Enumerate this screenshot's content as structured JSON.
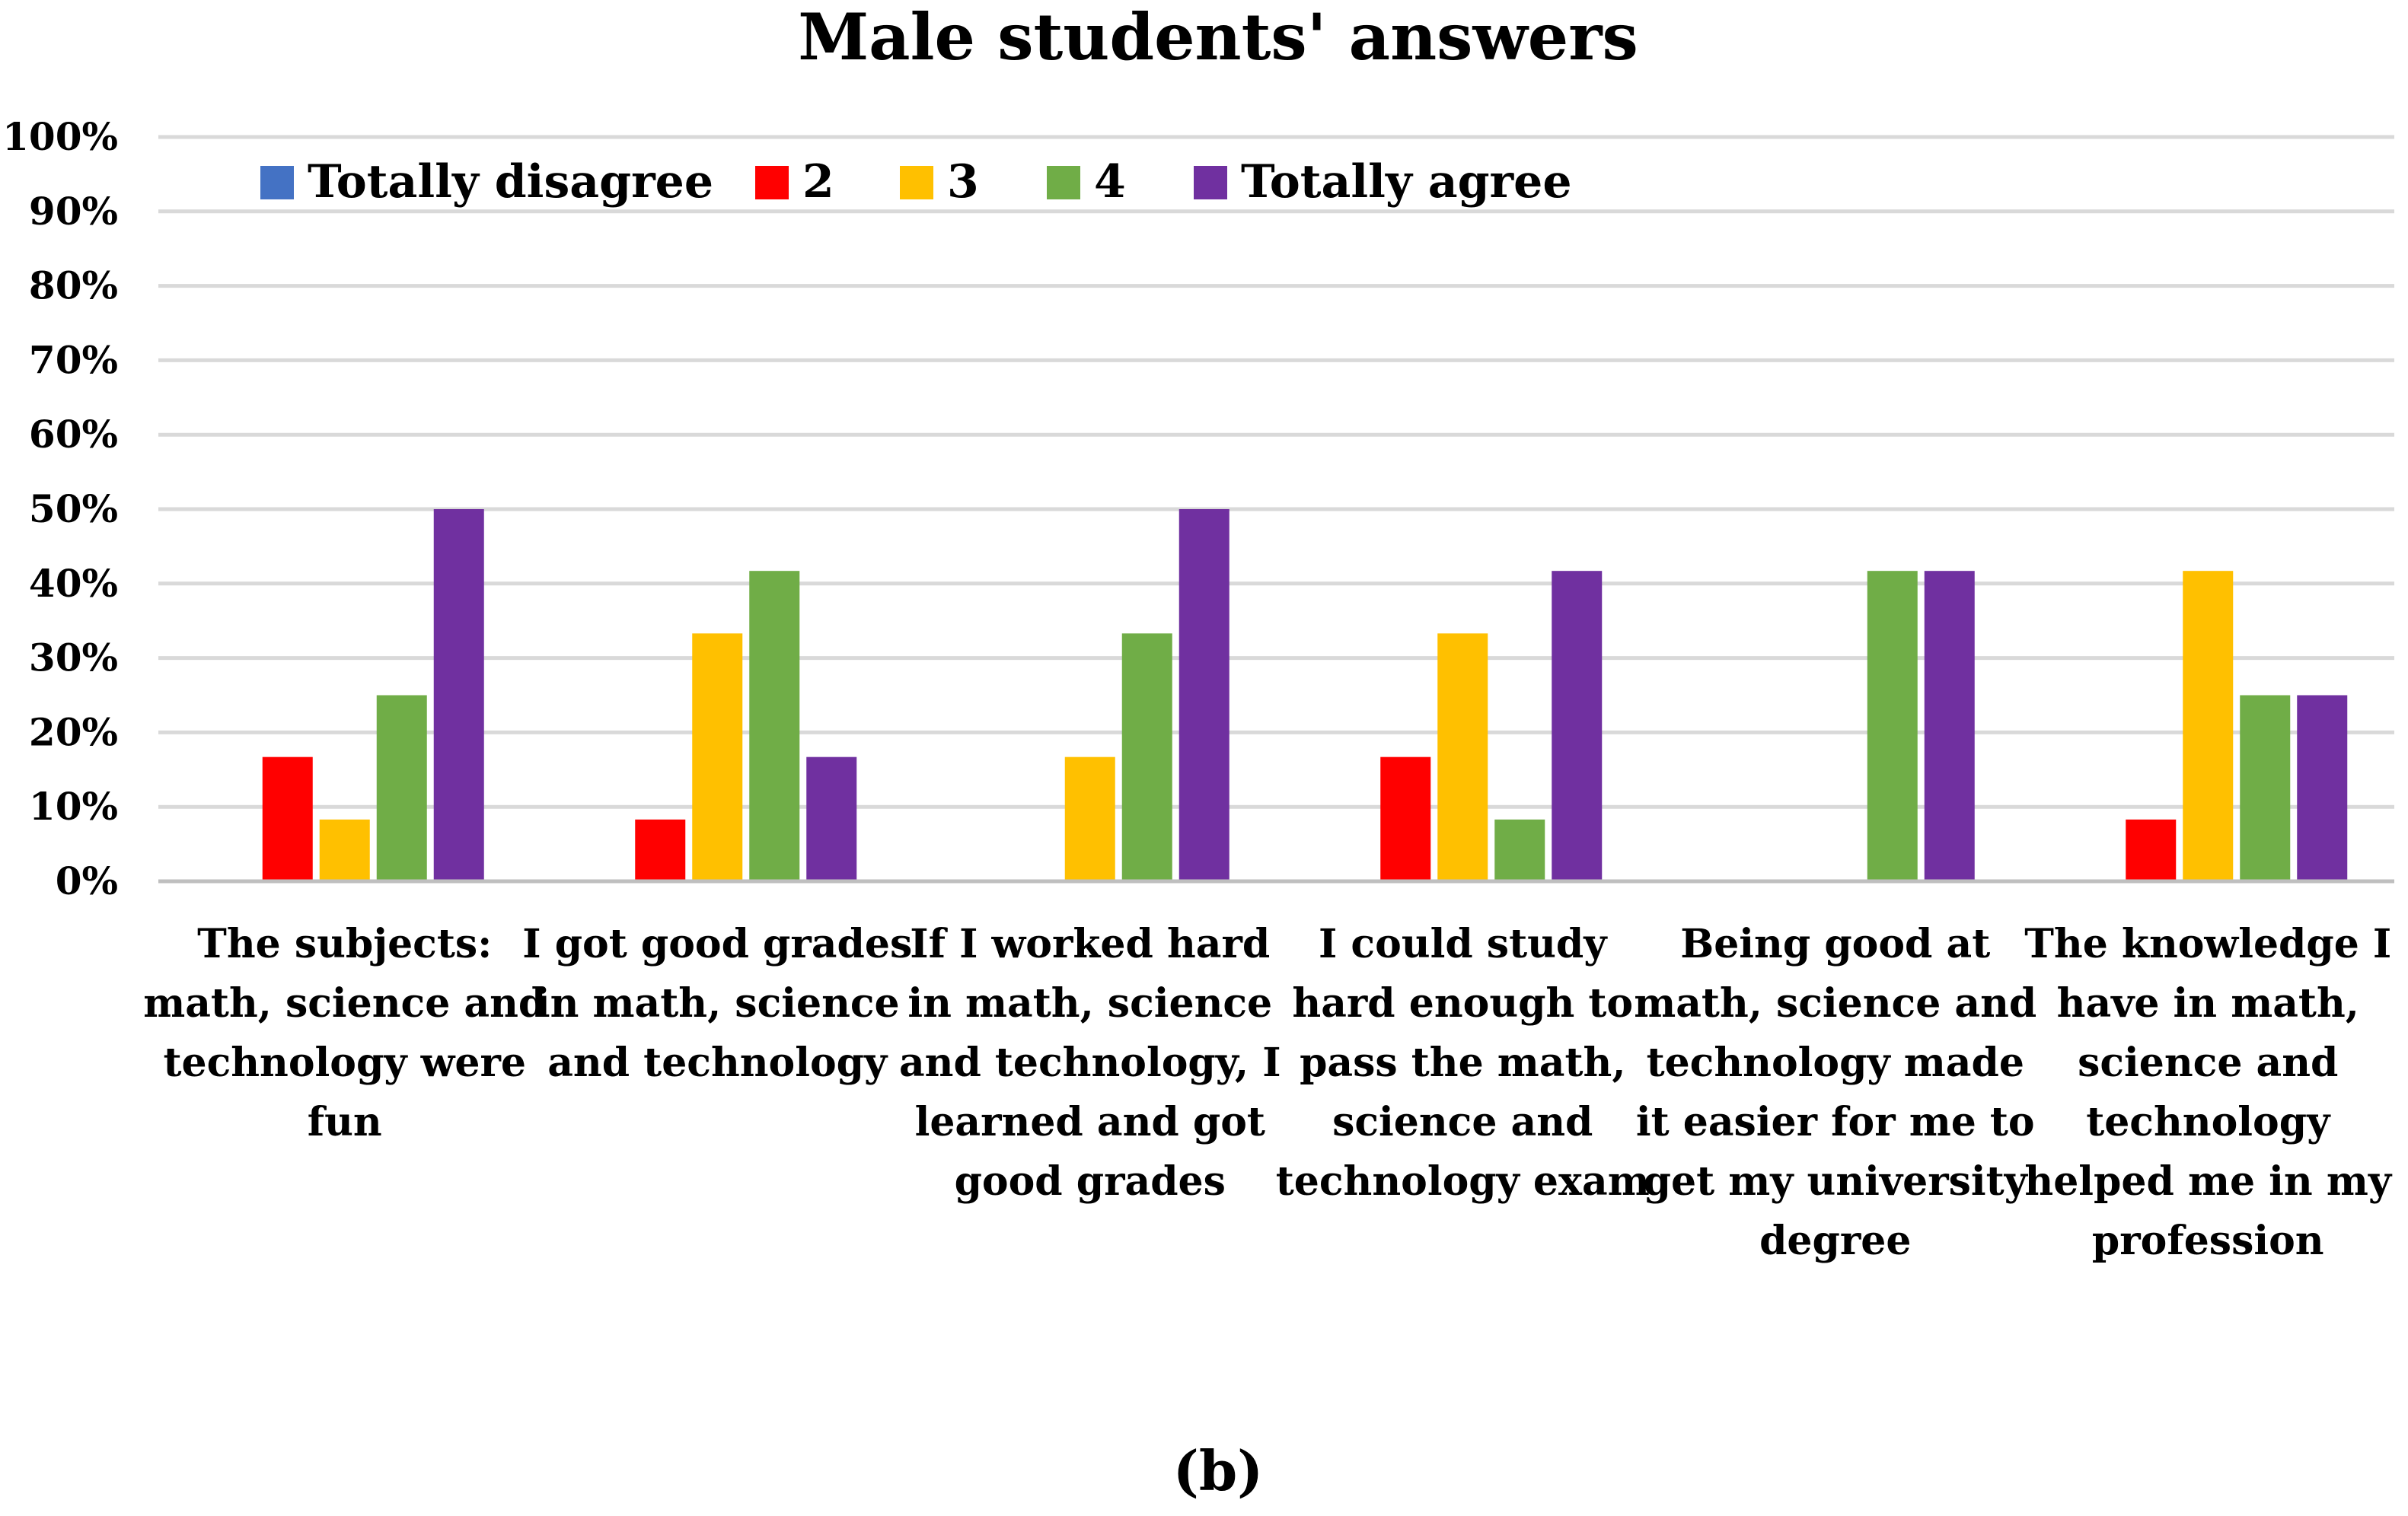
{
  "chart_data": {
    "type": "bar",
    "title": "Male students' answers",
    "panel_label": "(b)",
    "ylim": [
      0,
      100
    ],
    "y_ticks": [
      "0%",
      "10%",
      "20%",
      "30%",
      "40%",
      "50%",
      "60%",
      "70%",
      "80%",
      "90%",
      "100%"
    ],
    "grid": true,
    "legend_position": "top-left",
    "categories": [
      [
        "The subjects:",
        "math, science and",
        "technology were",
        "fun"
      ],
      [
        "I got good grades",
        "in math, science",
        "and technology"
      ],
      [
        "If I worked hard",
        "in math, science",
        "and technology, I",
        "learned and got",
        "good grades"
      ],
      [
        "I could study",
        "hard enough to",
        "pass the math,",
        "science and",
        "technology exam"
      ],
      [
        "Being good at",
        "math, science and",
        "technology made",
        "it easier for me to",
        "get my university",
        "degree"
      ],
      [
        "The knowledge I",
        "have in math,",
        "science and",
        "technology",
        "helped me in my",
        "profession"
      ]
    ],
    "series": [
      {
        "name": "Totally disagree",
        "color": "#4472C4",
        "values": [
          0,
          0,
          0,
          0,
          0,
          0
        ]
      },
      {
        "name": "2",
        "color": "#FF0000",
        "values": [
          16.7,
          8.3,
          0,
          16.7,
          0,
          8.3
        ]
      },
      {
        "name": "3",
        "color": "#FFC000",
        "values": [
          8.3,
          33.3,
          16.7,
          33.3,
          0,
          41.7
        ]
      },
      {
        "name": "4",
        "color": "#70AD47",
        "values": [
          25,
          41.7,
          33.3,
          8.3,
          41.7,
          25
        ]
      },
      {
        "name": "Totally agree",
        "color": "#7030A0",
        "values": [
          50,
          16.7,
          50,
          41.7,
          41.7,
          25
        ]
      }
    ]
  }
}
